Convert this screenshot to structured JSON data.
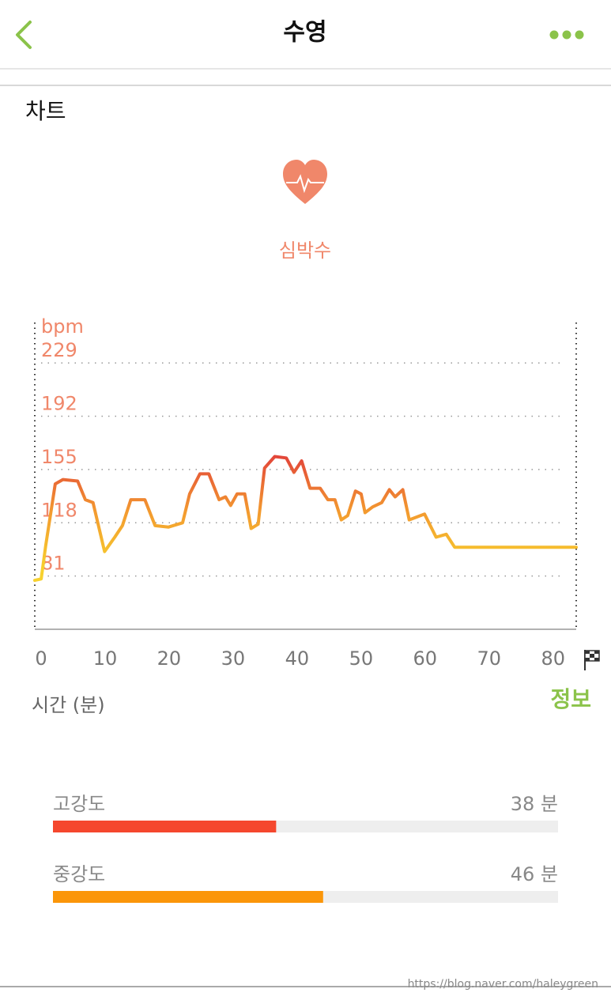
{
  "header": {
    "title": "수영"
  },
  "section_title": "차트",
  "chart_data": [
    {
      "type": "line",
      "title": "심박수",
      "y_unit": "bpm",
      "x_label": "시간 (분)",
      "x": [
        0,
        1,
        1.7,
        3.2,
        4.4,
        6.7,
        7.9,
        9.1,
        10.9,
        12.5,
        13.7,
        15,
        17.2,
        18.8,
        20.9,
        23.1,
        24.2,
        25.8,
        27.2,
        28.8,
        29.8,
        30.6,
        31.6,
        32.8,
        33.8,
        34.9,
        35.9,
        37.5,
        39.3,
        40.5,
        41.7,
        43,
        44.6,
        45.8,
        46.9,
        47.9,
        48.9,
        50.1,
        51,
        51.6,
        52.8,
        54.2,
        55.4,
        56.3,
        57.5,
        58.5,
        60.9,
        62.7,
        64.3,
        65.6,
        84.6
      ],
      "values": [
        78,
        79,
        102,
        145,
        148,
        147,
        134,
        132,
        98,
        108,
        116,
        134,
        134,
        116,
        115,
        118,
        138,
        152,
        152,
        134,
        136,
        130,
        138,
        138,
        114,
        117,
        156,
        164,
        163,
        153,
        161,
        142,
        142,
        134,
        134,
        120,
        123,
        140,
        138,
        125,
        129,
        132,
        141,
        136,
        141,
        120,
        124,
        108,
        110,
        101,
        101
      ],
      "xlim": [
        0,
        84.6
      ],
      "xticks": [
        0,
        10,
        20,
        30,
        40,
        50,
        60,
        70,
        80
      ],
      "ylim": [
        44,
        256
      ],
      "yticks": [
        81,
        118,
        155,
        192,
        229
      ],
      "grid": true,
      "color_scale": [
        "#f7d12e",
        "#f39a2f",
        "#e2433a"
      ]
    },
    {
      "type": "hbar",
      "categories": [
        "고강도",
        "중강도"
      ],
      "values": [
        38,
        46
      ],
      "value_labels": [
        "38 분",
        "46 분"
      ],
      "colors": [
        "#f5472d",
        "#fb9609"
      ],
      "xlim": [
        0,
        86
      ]
    }
  ],
  "info_link": "정보",
  "watermark": "https://blog.naver.com/haleygreen"
}
